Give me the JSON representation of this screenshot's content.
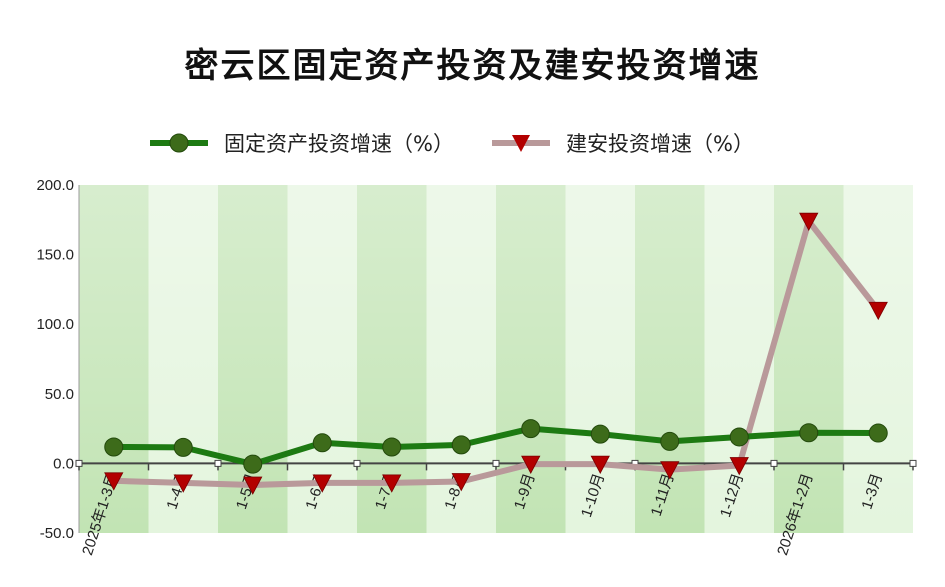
{
  "title": "密云区固定资产投资及建安投资增速",
  "colors": {
    "fixed_line": "#1d7a12",
    "fixed_marker": "#3d6b1a",
    "construction_line": "#b9999a",
    "construction_marker": "#b30000",
    "band_dark": "#c2e4b4",
    "band_light": "#e4f5de"
  },
  "chart_data": {
    "type": "line",
    "title": "密云区固定资产投资及建安投资增速",
    "categories": [
      "2025年1-3月",
      "1-4月",
      "1-5月",
      "1-6月",
      "1-7月",
      "1-8月",
      "1-9月",
      "1-10月",
      "1-11月",
      "1-12月",
      "2026年1-2月",
      "1-3月"
    ],
    "series": [
      {
        "name": "固定资产投资增速（%）",
        "values": [
          11.8,
          11.5,
          -0.5,
          14.8,
          11.8,
          13.3,
          25.0,
          21.0,
          15.8,
          19.0,
          22.0,
          21.8
        ]
      },
      {
        "name": "建安投资增速（%）",
        "values": [
          -12.5,
          -14.0,
          -15.5,
          -14.0,
          -14.0,
          -13.0,
          -0.5,
          -0.5,
          -4.5,
          -1.5,
          174.0,
          110.0
        ]
      }
    ],
    "yticks": [
      "200.0",
      "150.0",
      "100.0",
      "50.0",
      "0.0",
      "-50.0"
    ],
    "ylim": [
      -50,
      200
    ],
    "legend_position": "top",
    "grid": false
  }
}
